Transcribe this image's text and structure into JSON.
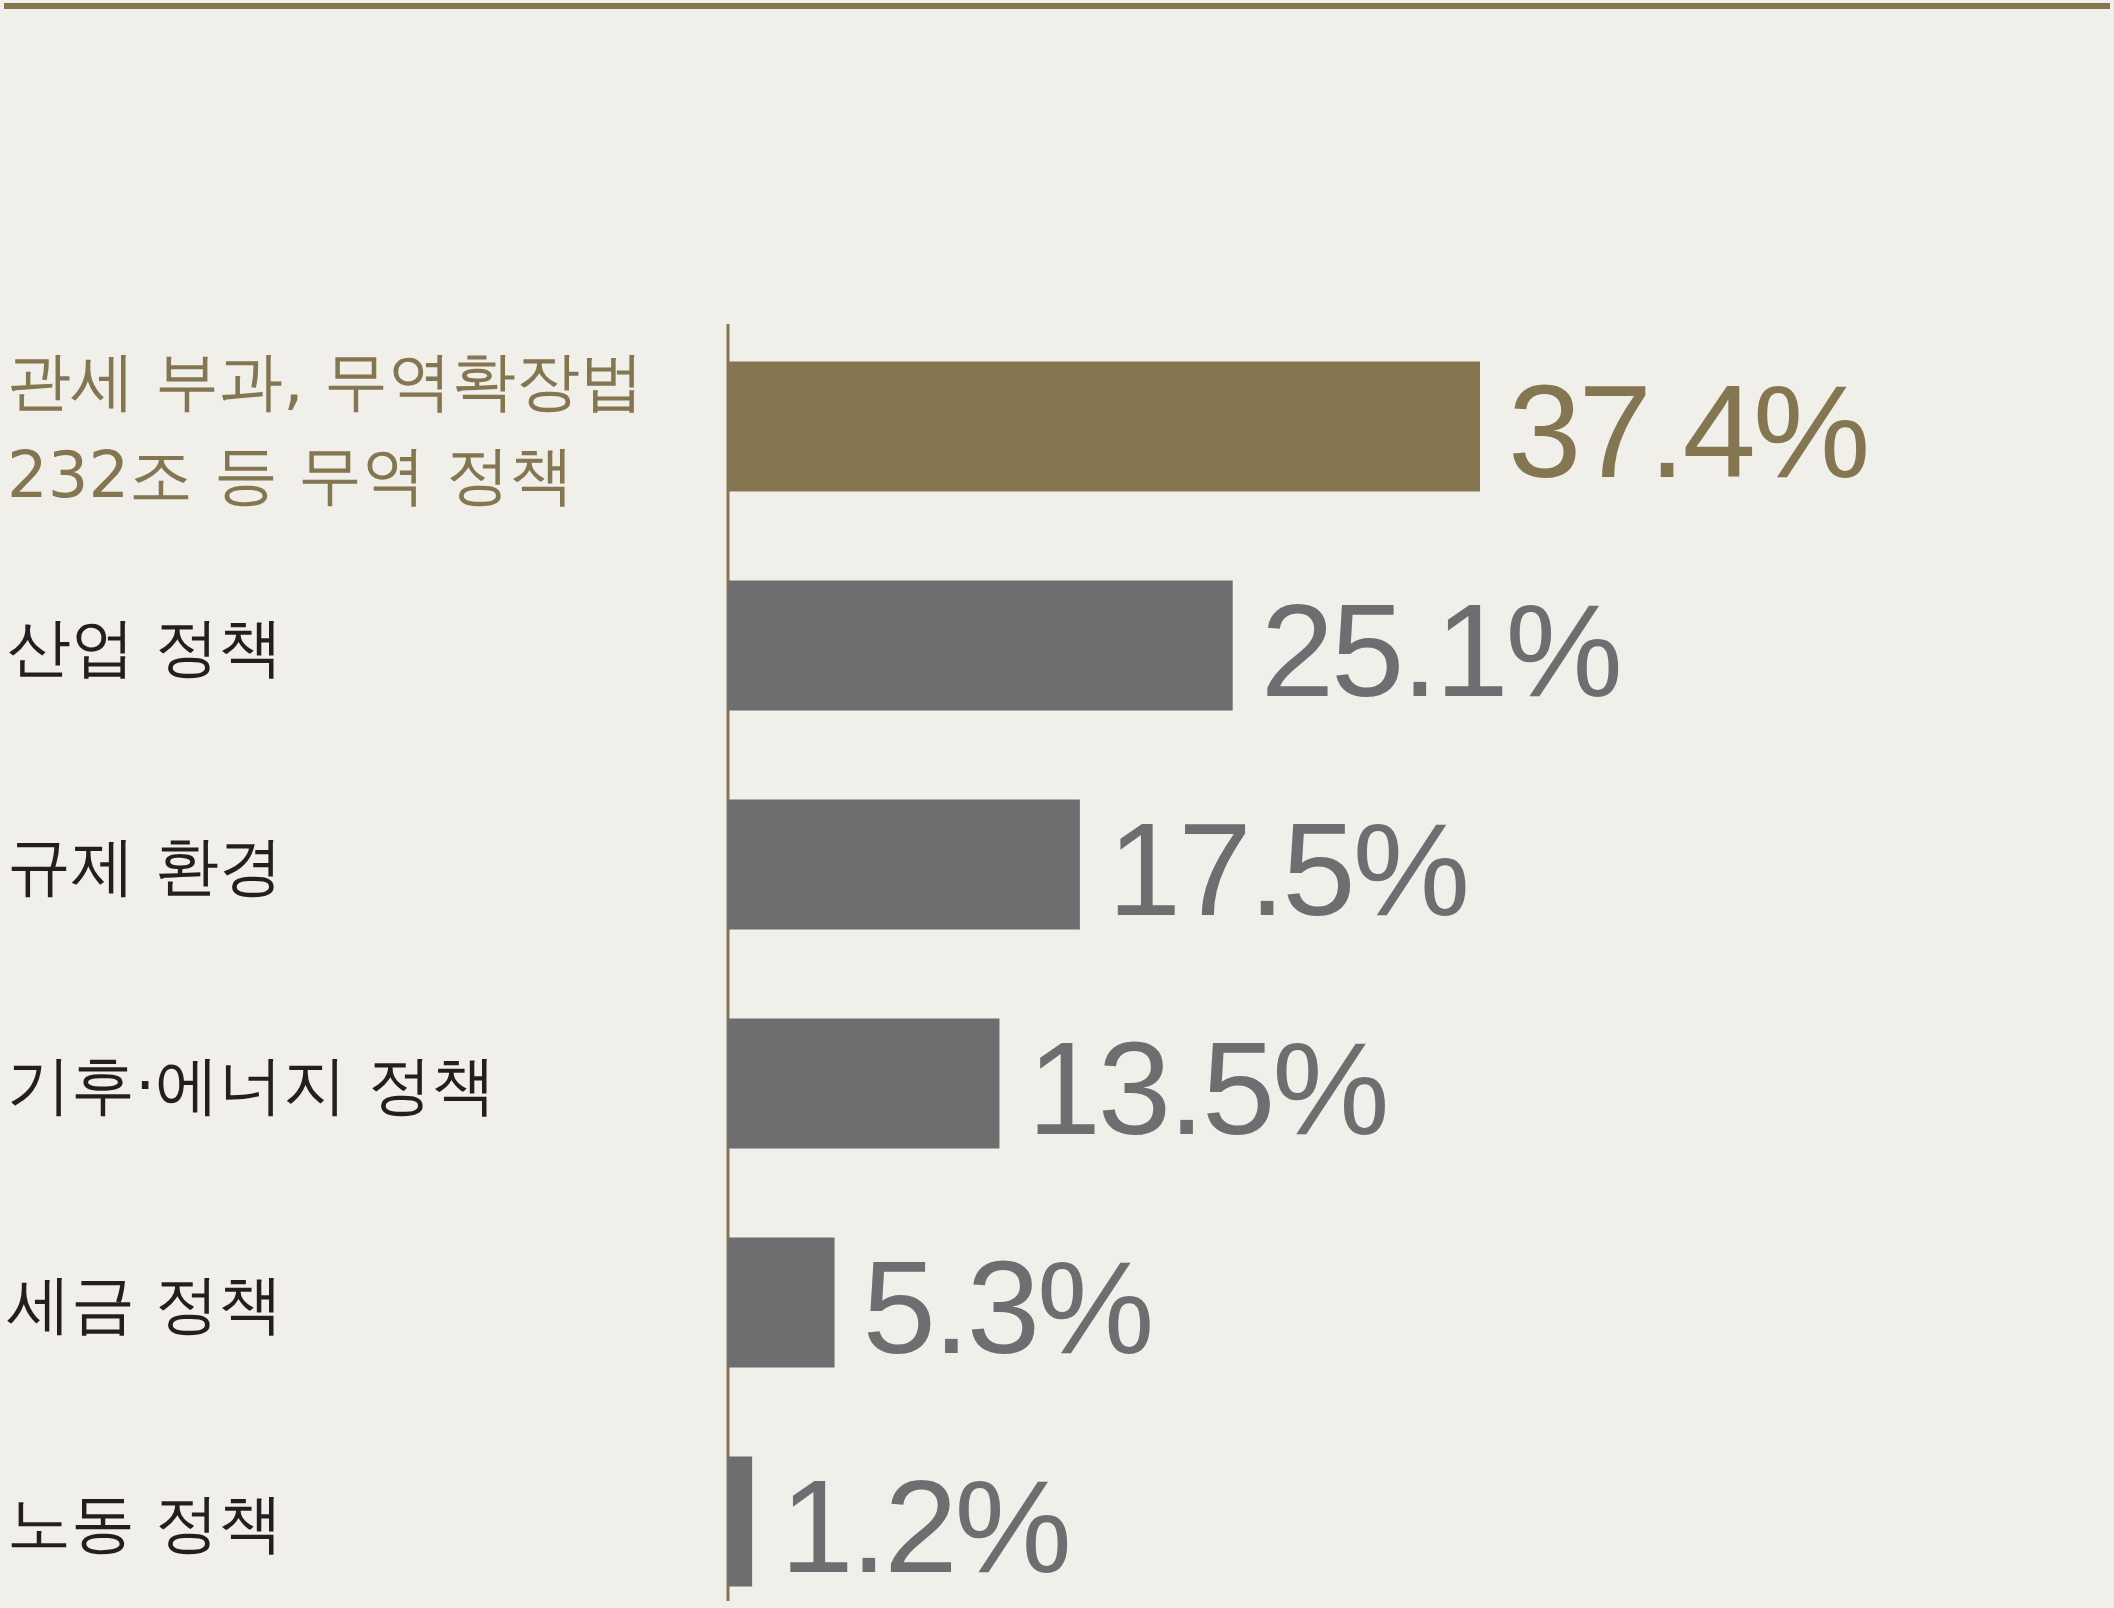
{
  "chart_data": {
    "type": "bar",
    "orientation": "horizontal",
    "categories": [
      "관세 부과, 무역확장법 232조 등 무역 정책",
      "산업 정책",
      "규제 환경",
      "기후·에너지 정책",
      "세금 정책",
      "노동 정책"
    ],
    "values": [
      37.4,
      25.1,
      17.5,
      13.5,
      5.3,
      1.2
    ],
    "colors": [
      "#837650",
      "#6d6e70",
      "#6d6e70",
      "#6d6e70",
      "#6d6e70",
      "#6d6e70"
    ],
    "value_labels": [
      "37.4%",
      "25.1%",
      "17.5%",
      "13.5%",
      "5.3%",
      "1.2%"
    ]
  }
}
